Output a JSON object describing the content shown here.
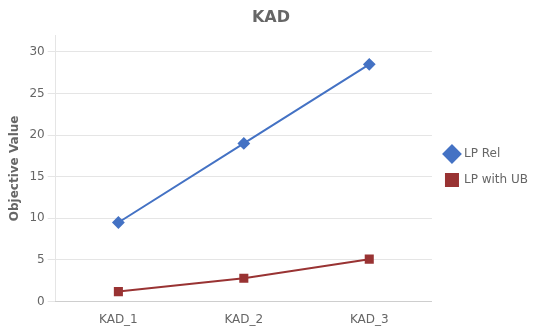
{
  "chart_data": {
    "type": "line",
    "title": "KAD",
    "ylabel": "Objective Value",
    "categories": [
      "KAD_1",
      "KAD_2",
      "KAD_3"
    ],
    "series": [
      {
        "name": "LP Rel",
        "color": "#4472C4",
        "marker": "diamond",
        "values": [
          9.5,
          19.0,
          28.5
        ]
      },
      {
        "name": "LP with UB",
        "color": "#993333",
        "marker": "square",
        "values": [
          1.2,
          2.8,
          5.1
        ]
      }
    ],
    "ylim": [
      0,
      32
    ],
    "yticks": [
      0,
      5,
      10,
      15,
      20,
      25,
      30
    ],
    "grid": "y",
    "legend": "right"
  }
}
